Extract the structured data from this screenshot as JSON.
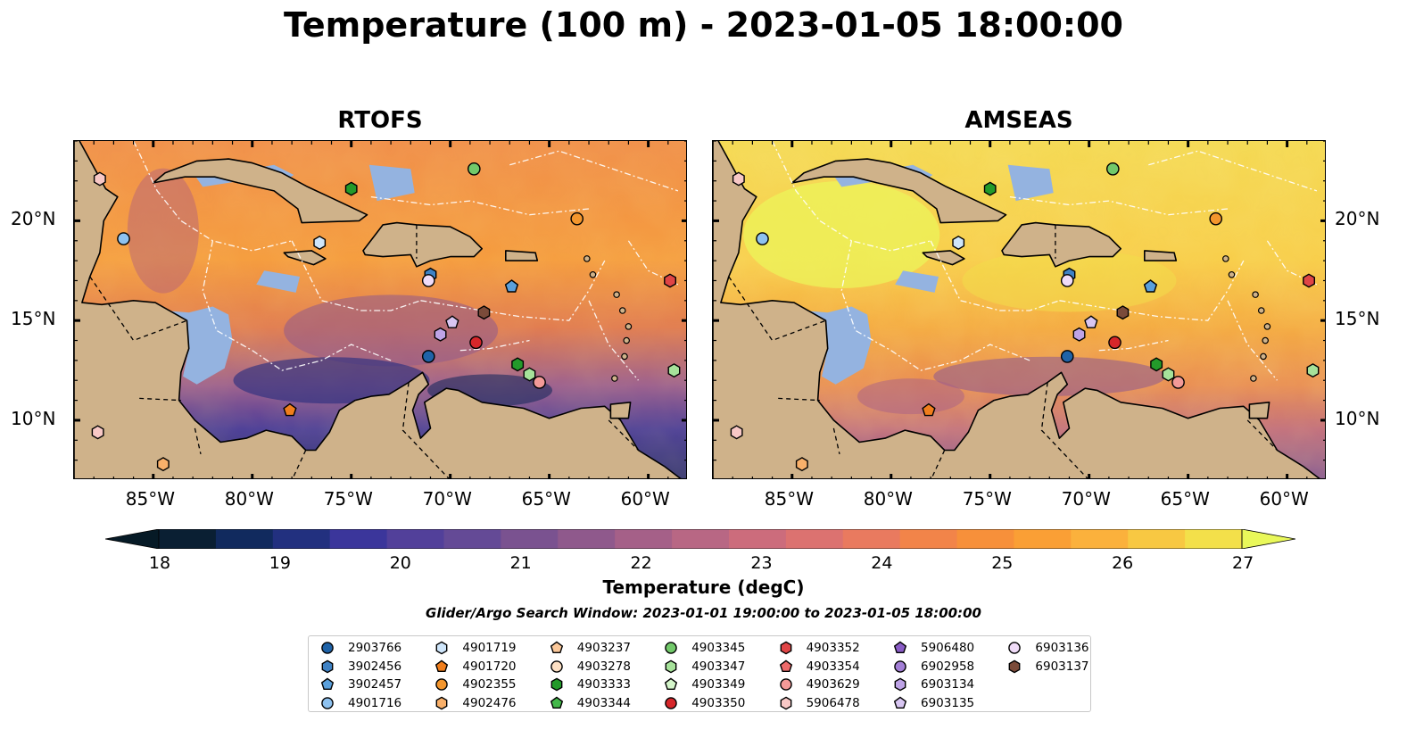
{
  "title": "Temperature (100 m) - 2023-01-05 18:00:00",
  "panels": [
    {
      "title": "RTOFS",
      "mode": "rtofs"
    },
    {
      "title": "AMSEAS",
      "mode": "amseas"
    }
  ],
  "map": {
    "lon_range": [
      -89,
      -58
    ],
    "lat_range": [
      7,
      24
    ],
    "lon_ticks": [
      "85°W",
      "80°W",
      "75°W",
      "70°W",
      "65°W",
      "60°W"
    ],
    "lon_tick_values": [
      -85,
      -80,
      -75,
      -70,
      -65,
      -60
    ],
    "lat_ticks": [
      "20°N",
      "15°N",
      "10°N"
    ],
    "lat_tick_values": [
      20,
      15,
      10
    ],
    "colors": {
      "land": "#cfb28a",
      "shallow": "#94b3e0",
      "coast": "#000000"
    }
  },
  "colorbar": {
    "label": "Temperature (degC)",
    "ticks": [
      "18",
      "19",
      "20",
      "21",
      "22",
      "23",
      "24",
      "25",
      "26",
      "27"
    ],
    "colors": [
      "#0a1f33",
      "#112a5e",
      "#22307f",
      "#3b369b",
      "#52409a",
      "#644a96",
      "#7a5290",
      "#8f598c",
      "#a56088",
      "#b86784",
      "#cc6c7c",
      "#dc7270",
      "#e97a5f",
      "#f28449",
      "#f7903a",
      "#fa9f35",
      "#fbb13c",
      "#f8c842",
      "#f3e04a"
    ],
    "under": "#061a26",
    "over": "#e9f85a"
  },
  "search_window": "Glider/Argo Search Window: 2023-01-01 19:00:00 to 2023-01-05 18:00:00",
  "legend": [
    {
      "id": "2903766",
      "shape": "circle",
      "color": "#1f63a8"
    },
    {
      "id": "3902456",
      "shape": "hexagon",
      "color": "#3f82c4"
    },
    {
      "id": "3902457",
      "shape": "pentagon",
      "color": "#5aa0dc"
    },
    {
      "id": "4901716",
      "shape": "circle",
      "color": "#8ec2f0"
    },
    {
      "id": "4901719",
      "shape": "hexagon",
      "color": "#cfe6fb"
    },
    {
      "id": "4901720",
      "shape": "pentagon",
      "color": "#f07e1c"
    },
    {
      "id": "4902355",
      "shape": "circle",
      "color": "#f4962d"
    },
    {
      "id": "4902476",
      "shape": "hexagon",
      "color": "#f9b06a"
    },
    {
      "id": "4903237",
      "shape": "pentagon",
      "color": "#fbc89a"
    },
    {
      "id": "4903278",
      "shape": "circle",
      "color": "#fde0c4"
    },
    {
      "id": "4903333",
      "shape": "hexagon",
      "color": "#239a2a"
    },
    {
      "id": "4903344",
      "shape": "pentagon",
      "color": "#43b84a"
    },
    {
      "id": "4903345",
      "shape": "circle",
      "color": "#72c96a"
    },
    {
      "id": "4903347",
      "shape": "hexagon",
      "color": "#a6e29a"
    },
    {
      "id": "4903349",
      "shape": "pentagon",
      "color": "#d4f5ca"
    },
    {
      "id": "4903350",
      "shape": "circle",
      "color": "#d6262a"
    },
    {
      "id": "4903352",
      "shape": "hexagon",
      "color": "#e04546"
    },
    {
      "id": "4903354",
      "shape": "pentagon",
      "color": "#ec6a6a"
    },
    {
      "id": "4903629",
      "shape": "circle",
      "color": "#f39a98"
    },
    {
      "id": "5906478",
      "shape": "hexagon",
      "color": "#f8c8c6"
    },
    {
      "id": "5906480",
      "shape": "pentagon",
      "color": "#8a5cc6"
    },
    {
      "id": "6902958",
      "shape": "circle",
      "color": "#a37fd6"
    },
    {
      "id": "6903134",
      "shape": "hexagon",
      "color": "#bea3e6"
    },
    {
      "id": "6903135",
      "shape": "pentagon",
      "color": "#d8c6f2"
    },
    {
      "id": "6903136",
      "shape": "circle",
      "color": "#f0dcf8"
    },
    {
      "id": "6903137",
      "shape": "hexagon",
      "color": "#7b4b3a"
    }
  ],
  "markers": [
    {
      "id": "5906478",
      "lon": -87.7,
      "lat": 22.1
    },
    {
      "id": "4901716",
      "lon": -86.5,
      "lat": 19.1
    },
    {
      "id": "4903333",
      "lon": -75.0,
      "lat": 21.6
    },
    {
      "id": "4903345",
      "lon": -68.8,
      "lat": 22.6
    },
    {
      "id": "4902355",
      "lon": -63.6,
      "lat": 20.1
    },
    {
      "id": "4901719",
      "lon": -76.6,
      "lat": 18.9
    },
    {
      "id": "3902456",
      "lon": -71.0,
      "lat": 17.3
    },
    {
      "id": "6903136",
      "lon": -71.1,
      "lat": 17.0
    },
    {
      "id": "3902457",
      "lon": -66.9,
      "lat": 16.7
    },
    {
      "id": "4903352",
      "lon": -58.9,
      "lat": 17.0
    },
    {
      "id": "6903135",
      "lon": -69.9,
      "lat": 14.9
    },
    {
      "id": "6903134",
      "lon": -70.5,
      "lat": 14.3
    },
    {
      "id": "6903137",
      "lon": -68.3,
      "lat": 15.4
    },
    {
      "id": "4903350",
      "lon": -68.7,
      "lat": 13.9
    },
    {
      "id": "2903766",
      "lon": -71.1,
      "lat": 13.2
    },
    {
      "id": "4903333",
      "lon": -66.6,
      "lat": 12.8
    },
    {
      "id": "4903347",
      "lon": -66.0,
      "lat": 12.3
    },
    {
      "id": "4903629",
      "lon": -65.5,
      "lat": 11.9
    },
    {
      "id": "4903347",
      "lon": -58.7,
      "lat": 12.5
    },
    {
      "id": "4901720",
      "lon": -78.1,
      "lat": 10.5
    },
    {
      "id": "5906478",
      "lon": -87.8,
      "lat": 9.4
    },
    {
      "id": "4902476",
      "lon": -84.5,
      "lat": 7.8
    }
  ]
}
